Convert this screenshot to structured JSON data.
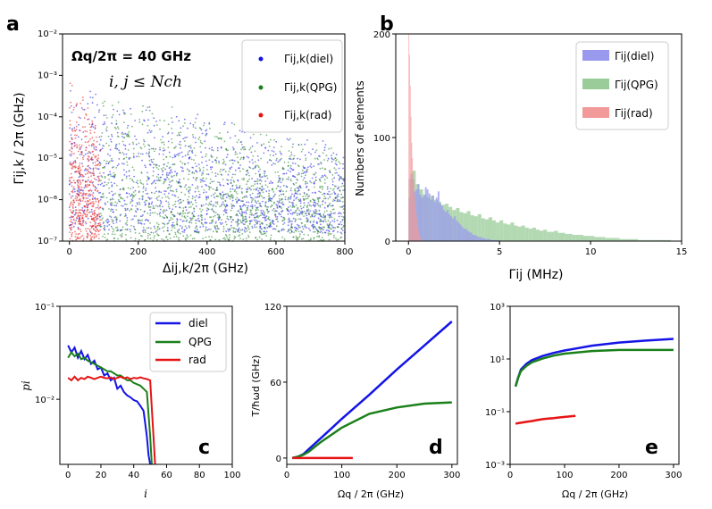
{
  "panel_labels": {
    "a": "a",
    "b": "b",
    "c": "c",
    "d": "d",
    "e": "e"
  },
  "colors": {
    "diel": "#1414e6",
    "qpg": "#1a801a",
    "rad": "#e61414",
    "diel_hist": "#9999ee",
    "qpg_hist": "#99cc99",
    "rad_hist": "#f29999"
  },
  "chart_data": [
    {
      "id": "a",
      "type": "scatter",
      "xlabel": "Δij,k/2π (GHz)",
      "ylabel": "Γij,k / 2π (GHz)",
      "xlim": [
        -20,
        800
      ],
      "ylim_log10": [
        -7,
        -2
      ],
      "x_ticks": [
        "0",
        "200",
        "400",
        "600",
        "800"
      ],
      "y_ticks": [
        "10⁻⁷",
        "10⁻⁶",
        "10⁻⁵",
        "10⁻⁴",
        "10⁻³",
        "10⁻²"
      ],
      "annotation_1": "Ωq/2π = 40 GHz",
      "annotation_2": "i, j ≤ Nch",
      "legend": [
        "Γij,k(diel)",
        "Γij,k(QPG)",
        "Γij,k(rad)"
      ],
      "legend_position": "top-right",
      "series": [
        {
          "name": "Γij,k(diel)",
          "x_range": [
            0,
            800
          ],
          "log10_y_range": [
            -6.8,
            -3.2
          ]
        },
        {
          "name": "Γij,k(QPG)",
          "x_range": [
            90,
            800
          ],
          "log10_y_range": [
            -7,
            -3.3
          ]
        },
        {
          "name": "Γij,k(rad)",
          "x_range": [
            0,
            90
          ],
          "log10_y_range": [
            -7,
            -3
          ]
        }
      ]
    },
    {
      "id": "b",
      "type": "bar",
      "xlabel": "Γij (MHz)",
      "ylabel": "Numbers of elements",
      "xlim": [
        -0.7,
        15
      ],
      "ylim": [
        0,
        200
      ],
      "x_ticks": [
        "0",
        "5",
        "10",
        "15"
      ],
      "y_ticks": [
        "0",
        "100",
        "200"
      ],
      "legend": [
        "Γij(diel)",
        "Γij(QPG)",
        "Γij(rad)"
      ],
      "legend_position": "top-right",
      "series": [
        {
          "name": "Γij(diel)",
          "x": [
            0.05,
            0.15,
            0.25,
            0.35,
            0.45,
            0.55,
            0.65,
            0.75,
            0.85,
            0.95,
            1.05,
            1.15,
            1.25,
            1.35,
            1.45,
            1.55,
            1.65,
            1.75,
            1.85,
            1.95,
            2.05,
            2.15,
            2.25,
            2.35,
            2.45,
            2.55,
            2.65,
            2.75,
            2.85,
            2.95,
            3.05,
            3.15,
            3.25,
            3.35,
            3.45,
            3.55,
            3.65,
            3.75,
            3.85,
            3.95,
            4.05,
            4.15,
            4.25,
            4.35,
            4.45,
            4.55,
            4.65,
            4.75,
            4.85,
            4.95
          ],
          "values": [
            42,
            65,
            60,
            48,
            50,
            55,
            45,
            42,
            44,
            52,
            50,
            46,
            40,
            44,
            38,
            42,
            48,
            36,
            34,
            30,
            28,
            30,
            26,
            24,
            22,
            24,
            20,
            18,
            16,
            14,
            12,
            12,
            10,
            9,
            8,
            6,
            6,
            5,
            4,
            4,
            3,
            3,
            2,
            2,
            2,
            1,
            1,
            1,
            1,
            1
          ]
        },
        {
          "name": "Γij(QPG)",
          "x": [
            0.1,
            0.3,
            0.5,
            0.7,
            0.9,
            1.1,
            1.3,
            1.5,
            1.7,
            1.9,
            2.1,
            2.3,
            2.5,
            2.7,
            2.9,
            3.1,
            3.3,
            3.5,
            3.7,
            3.9,
            4.1,
            4.3,
            4.5,
            4.7,
            4.9,
            5.1,
            5.3,
            5.5,
            5.7,
            5.9,
            6.1,
            6.3,
            6.5,
            6.7,
            6.9,
            7.1,
            7.3,
            7.5,
            7.7,
            7.9,
            8.1,
            8.3,
            8.5,
            8.7,
            8.9,
            9.1,
            9.3,
            9.5,
            9.7,
            9.9,
            10.1,
            10.3,
            10.5,
            10.7,
            10.9,
            11.1,
            11.3,
            11.5,
            11.7,
            11.9,
            12.1,
            12.3,
            12.5,
            12.7,
            12.9,
            13.1,
            13.3,
            13.5,
            13.7,
            13.9,
            14.1,
            14.3
          ],
          "values": [
            60,
            68,
            55,
            50,
            45,
            42,
            44,
            40,
            38,
            35,
            36,
            33,
            30,
            32,
            28,
            27,
            29,
            25,
            24,
            26,
            22,
            21,
            23,
            20,
            18,
            20,
            17,
            16,
            18,
            15,
            14,
            15,
            13,
            12,
            13,
            11,
            10,
            11,
            9,
            9,
            10,
            8,
            8,
            7,
            7,
            6,
            6,
            6,
            5,
            5,
            5,
            4,
            4,
            4,
            3,
            3,
            3,
            3,
            2,
            2,
            2,
            2,
            2,
            1,
            1,
            1,
            1,
            1,
            1,
            1,
            1,
            1
          ]
        },
        {
          "name": "Γij(rad)",
          "x": [
            0.02,
            0.06,
            0.1,
            0.14,
            0.18,
            0.22,
            0.26,
            0.3,
            0.34,
            0.38,
            0.42,
            0.46,
            0.5,
            0.54,
            0.58,
            0.62,
            0.66,
            0.7
          ],
          "values": [
            200,
            180,
            150,
            120,
            95,
            80,
            66,
            58,
            45,
            36,
            28,
            22,
            16,
            12,
            8,
            5,
            3,
            2
          ]
        }
      ]
    },
    {
      "id": "c",
      "type": "line",
      "xlabel": "i",
      "ylabel": "pi",
      "xlim": [
        -5,
        100
      ],
      "ylim_log10": [
        -2.7,
        -1
      ],
      "x_ticks": [
        "0",
        "20",
        "40",
        "60",
        "80",
        "100"
      ],
      "y_ticks": [
        "10⁻²",
        "10⁻¹"
      ],
      "legend": [
        "diel",
        "QPG",
        "rad"
      ],
      "legend_position": "top-right",
      "series": [
        {
          "name": "diel",
          "x": [
            0,
            2,
            4,
            6,
            8,
            10,
            12,
            14,
            16,
            18,
            20,
            22,
            24,
            26,
            28,
            30,
            32,
            34,
            36,
            38,
            40,
            42,
            44,
            46,
            48,
            49,
            50
          ],
          "values": [
            0.038,
            0.032,
            0.036,
            0.028,
            0.033,
            0.027,
            0.03,
            0.024,
            0.026,
            0.021,
            0.022,
            0.018,
            0.019,
            0.016,
            0.017,
            0.013,
            0.014,
            0.012,
            0.011,
            0.0105,
            0.0098,
            0.0095,
            0.0085,
            0.0075,
            0.004,
            0.0025,
            0.002
          ]
        },
        {
          "name": "QPG",
          "x": [
            0,
            2,
            4,
            6,
            8,
            10,
            12,
            14,
            16,
            18,
            20,
            22,
            24,
            26,
            28,
            30,
            32,
            34,
            36,
            38,
            40,
            42,
            44,
            46,
            48,
            50,
            51
          ],
          "values": [
            0.028,
            0.032,
            0.029,
            0.031,
            0.027,
            0.028,
            0.026,
            0.025,
            0.024,
            0.023,
            0.022,
            0.021,
            0.02,
            0.02,
            0.019,
            0.018,
            0.018,
            0.017,
            0.016,
            0.016,
            0.015,
            0.0145,
            0.014,
            0.013,
            0.012,
            0.004,
            0.002
          ]
        },
        {
          "name": "rad",
          "x": [
            0,
            2,
            4,
            6,
            8,
            10,
            12,
            14,
            16,
            18,
            20,
            22,
            24,
            26,
            28,
            30,
            32,
            34,
            36,
            38,
            40,
            42,
            44,
            46,
            48,
            50,
            52,
            53
          ],
          "values": [
            0.017,
            0.016,
            0.0175,
            0.016,
            0.017,
            0.0165,
            0.0175,
            0.017,
            0.0165,
            0.017,
            0.0175,
            0.017,
            0.0168,
            0.0172,
            0.0165,
            0.017,
            0.0175,
            0.0168,
            0.0172,
            0.0165,
            0.017,
            0.0168,
            0.0172,
            0.0168,
            0.0165,
            0.016,
            0.004,
            0.002
          ]
        }
      ]
    },
    {
      "id": "d",
      "type": "line",
      "xlabel": "Ωq / 2π (GHz)",
      "ylabel": "T/ħωd (GHz)",
      "xlim": [
        0,
        310
      ],
      "ylim": [
        -5,
        120
      ],
      "x_ticks": [
        "0",
        "100",
        "200",
        "300"
      ],
      "y_ticks": [
        "0",
        "60",
        "120"
      ],
      "series": [
        {
          "name": "diel",
          "x": [
            10,
            20,
            30,
            40,
            60,
            80,
            100,
            150,
            200,
            250,
            300
          ],
          "values": [
            0,
            1,
            3,
            7,
            15,
            23,
            31,
            50,
            70,
            89,
            108
          ]
        },
        {
          "name": "QPG",
          "x": [
            10,
            20,
            30,
            40,
            60,
            80,
            100,
            150,
            200,
            250,
            300
          ],
          "values": [
            0,
            1,
            2.5,
            5,
            12,
            18,
            24,
            35,
            40,
            43,
            44
          ]
        },
        {
          "name": "rad",
          "x": [
            10,
            20,
            40,
            60,
            80,
            100,
            120
          ],
          "values": [
            0,
            0,
            0,
            0,
            0,
            0,
            0
          ]
        }
      ]
    },
    {
      "id": "e",
      "type": "line",
      "xlabel": "Ωq / 2π (GHz)",
      "ylabel": "",
      "xlim": [
        0,
        310
      ],
      "ylim_log10": [
        -3,
        3
      ],
      "x_ticks": [
        "0",
        "100",
        "200",
        "300"
      ],
      "y_ticks": [
        "10⁻³",
        "10⁻¹",
        "10¹",
        "10³"
      ],
      "series": [
        {
          "name": "diel",
          "x": [
            10,
            15,
            20,
            30,
            40,
            60,
            80,
            100,
            150,
            200,
            250,
            300
          ],
          "values": [
            0.9,
            2,
            4,
            6.5,
            9,
            13,
            17,
            21,
            32,
            42,
            50,
            58
          ]
        },
        {
          "name": "QPG",
          "x": [
            10,
            15,
            20,
            30,
            40,
            60,
            80,
            100,
            150,
            200,
            250,
            300
          ],
          "values": [
            0.9,
            2,
            3.5,
            5.5,
            7.5,
            10.5,
            13.5,
            16,
            20,
            22,
            22,
            22
          ]
        },
        {
          "name": "rad",
          "x": [
            10,
            20,
            30,
            40,
            50,
            60,
            70,
            80,
            90,
            100,
            110,
            120
          ],
          "values": [
            0.035,
            0.038,
            0.041,
            0.044,
            0.048,
            0.052,
            0.055,
            0.057,
            0.06,
            0.063,
            0.066,
            0.069
          ]
        }
      ]
    }
  ]
}
